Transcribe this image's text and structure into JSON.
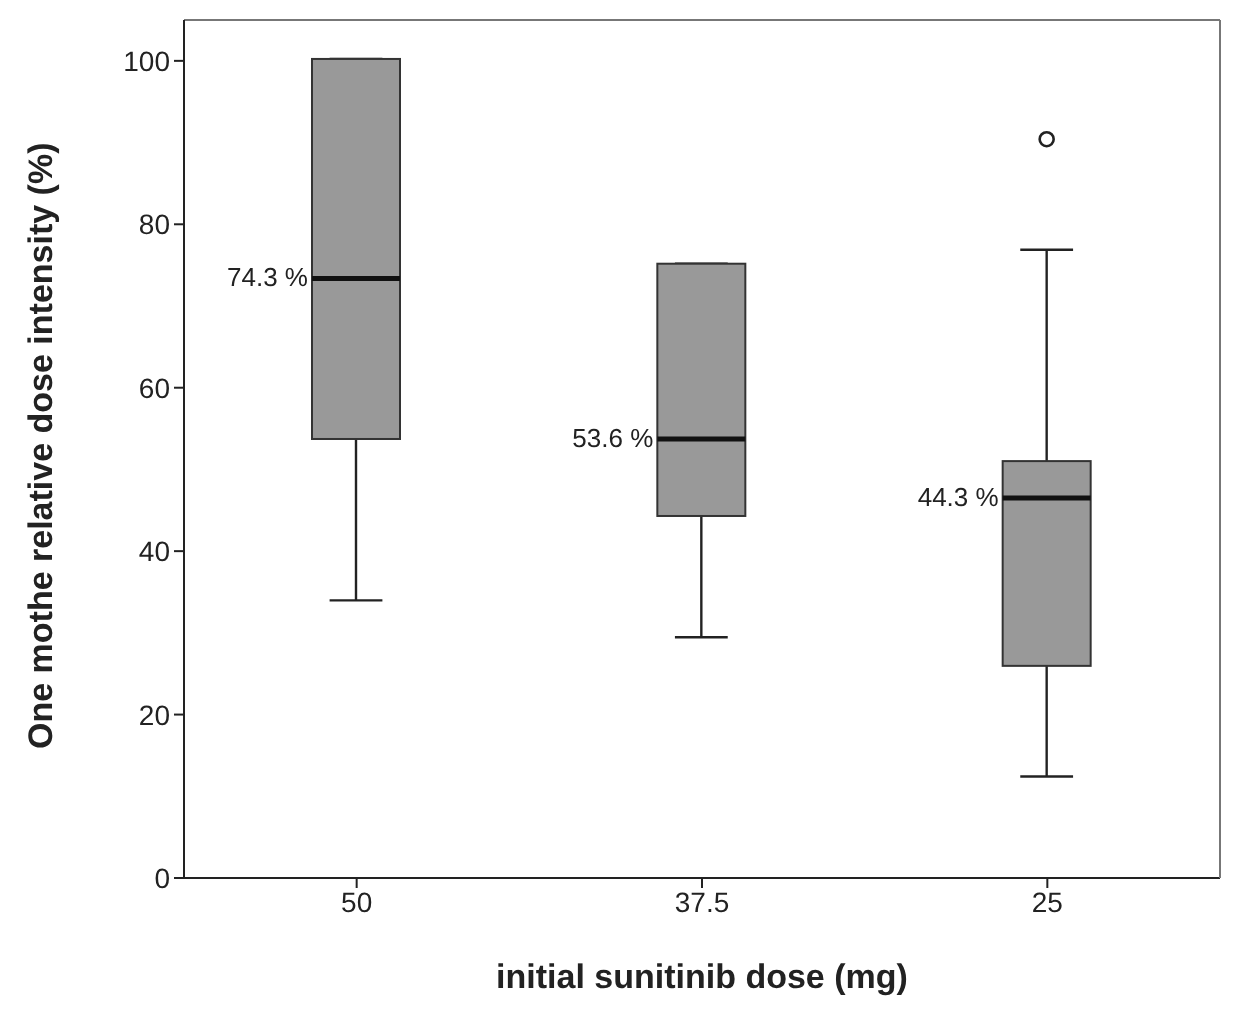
{
  "chart_data": {
    "type": "box",
    "xlabel": "initial sunitinib dose  (mg)",
    "ylabel": "One mothe relative dose intensity (%)",
    "categories": [
      "50",
      "37.5",
      "25"
    ],
    "boxes": [
      {
        "low": 33.9,
        "q1": 53.6,
        "median": 73.2,
        "q3": 100,
        "high": 100
      },
      {
        "low": 29.4,
        "q1": 44.2,
        "median": 53.6,
        "q3": 75.0,
        "high": 75.0
      },
      {
        "low": 12.4,
        "q1": 25.9,
        "median": 46.4,
        "q3": 50.9,
        "high": 76.7,
        "outliers": [
          90.2
        ]
      }
    ],
    "color": "#999999",
    "ylim": [
      0,
      105
    ],
    "yticks": [
      0,
      20,
      40,
      60,
      80,
      100
    ],
    "grid": false,
    "legend": false,
    "annotations": [
      {
        "text": "74.3 %",
        "x": "50",
        "y": 73.2
      },
      {
        "text": "53.6 %",
        "x": "37.5",
        "y": 53.6
      },
      {
        "text": "44.3 %",
        "x": "25",
        "y": 46.4
      }
    ]
  }
}
